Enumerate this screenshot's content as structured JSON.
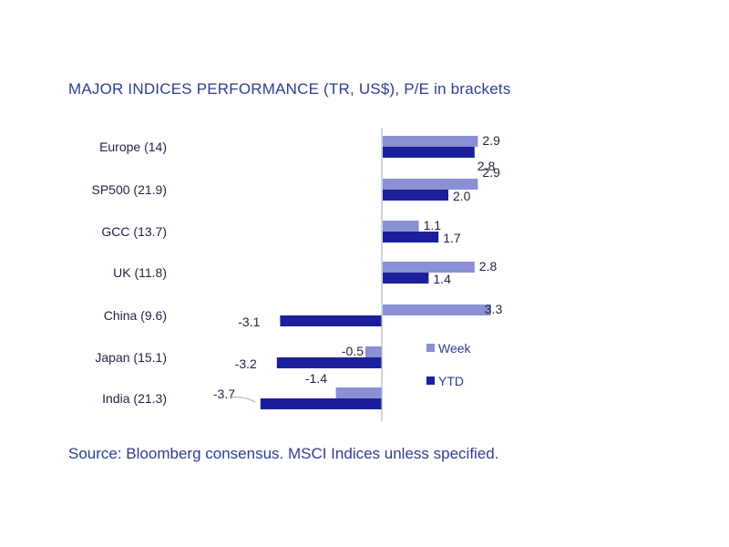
{
  "title": "MAJOR INDICES PERFORMANCE (TR, US$), P/E in brackets",
  "source": "Source: Bloomberg consensus. MSCI Indices unless specified.",
  "chart_data": {
    "type": "bar",
    "orientation": "horizontal",
    "title": "MAJOR INDICES PERFORMANCE (TR, US$), P/E in brackets",
    "xlabel": "",
    "ylabel": "",
    "unit": "%",
    "categories": [
      "Europe (14)",
      "SP500 (21.9)",
      "GCC (13.7)",
      "UK (11.8)",
      "China (9.6)",
      "Japan (15.1)",
      "India (21.3)"
    ],
    "series": [
      {
        "name": "Week",
        "color": "#8b8fd4",
        "values": [
          2.9,
          2.9,
          1.1,
          2.8,
          3.3,
          -0.5,
          -1.4
        ],
        "labels": [
          "2.9",
          "2.9",
          "1.1",
          "2.8",
          "3.3",
          "-0.5",
          "-1.4"
        ]
      },
      {
        "name": "YTD",
        "color": "#1c1f9c",
        "values": [
          2.8,
          2.0,
          1.7,
          1.4,
          -3.1,
          -3.2,
          -3.7
        ],
        "labels": [
          "2.8",
          "2.0",
          "1.7",
          "1.4",
          "-3.1",
          "-3.2",
          "-3.7"
        ]
      }
    ],
    "xlim": [
      -3.7,
      3.3
    ],
    "grid": false,
    "legend": {
      "position": "right",
      "entries": [
        "Week",
        "YTD"
      ]
    }
  }
}
